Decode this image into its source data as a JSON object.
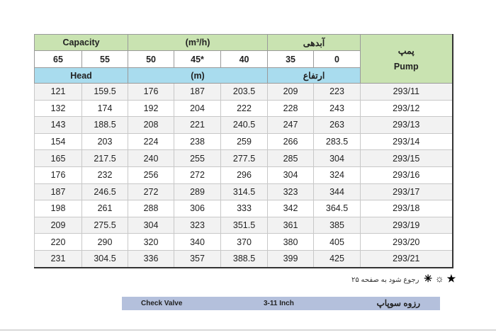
{
  "header": {
    "capacity": "Capacity",
    "capacity_unit": "(m³/h)",
    "capacity_fa": "آبدهی",
    "pump_fa": "پمپ",
    "pump": "Pump",
    "head": "Head",
    "head_unit": "(m)",
    "head_fa": "ارتفاع"
  },
  "flows": [
    "65",
    "55",
    "50",
    "45*",
    "40",
    "35",
    "0"
  ],
  "rows": [
    [
      "121",
      "159.5",
      "176",
      "187",
      "203.5",
      "209",
      "223",
      "293/11"
    ],
    [
      "132",
      "174",
      "192",
      "204",
      "222",
      "228",
      "243",
      "293/12"
    ],
    [
      "143",
      "188.5",
      "208",
      "221",
      "240.5",
      "247",
      "263",
      "293/13"
    ],
    [
      "154",
      "203",
      "224",
      "238",
      "259",
      "266",
      "283.5",
      "293/14"
    ],
    [
      "165",
      "217.5",
      "240",
      "255",
      "277.5",
      "285",
      "304",
      "293/15"
    ],
    [
      "176",
      "232",
      "256",
      "272",
      "296",
      "304",
      "324",
      "293/16"
    ],
    [
      "187",
      "246.5",
      "272",
      "289",
      "314.5",
      "323",
      "344",
      "293/17"
    ],
    [
      "198",
      "261",
      "288",
      "306",
      "333",
      "342",
      "364.5",
      "293/18"
    ],
    [
      "209",
      "275.5",
      "304",
      "323",
      "351.5",
      "361",
      "385",
      "293/19"
    ],
    [
      "220",
      "290",
      "320",
      "340",
      "370",
      "380",
      "405",
      "293/20"
    ],
    [
      "231",
      "304.5",
      "336",
      "357",
      "388.5",
      "399",
      "425",
      "293/21"
    ]
  ],
  "note": {
    "symbols": "★ ☼ ✳",
    "text": "رجوع شود به صفحه ۲۵"
  },
  "footer": {
    "left": "Check Valve",
    "center": "3-11 Inch",
    "right": "رزوه سوپاپ"
  }
}
